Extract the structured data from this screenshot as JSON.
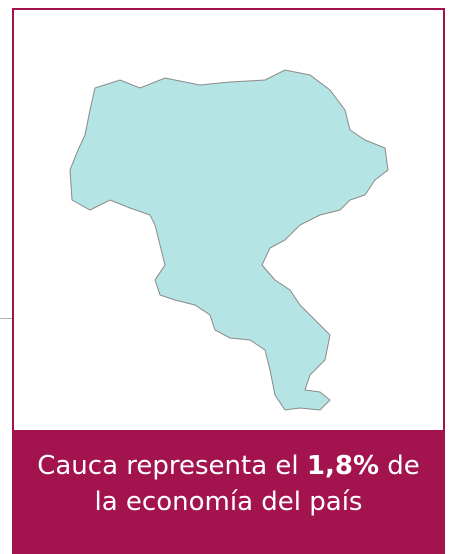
{
  "caption": {
    "before": "Cauca representa el",
    "highlight": "1,8%",
    "after": "de la economía del país"
  }
}
